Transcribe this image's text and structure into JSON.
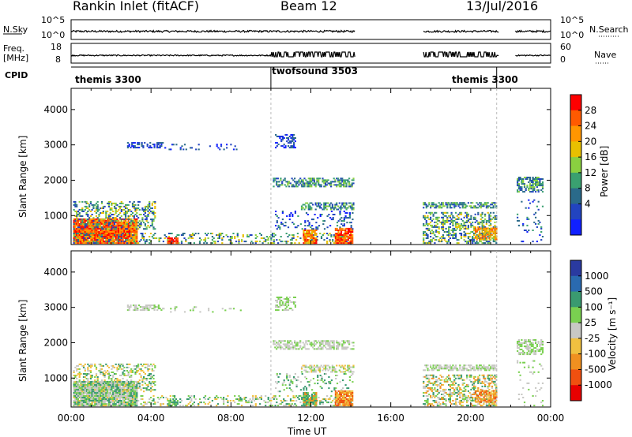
{
  "header": {
    "station": "Rankin Inlet (fitACF)",
    "beam": "Beam 12",
    "date": "13/Jul/2016"
  },
  "side_labels": {
    "nsky": "N.Sky",
    "nsearch": "N.Search",
    "freq_line1": "Freq.",
    "freq_line2": "[MHz]",
    "nave": "Nave",
    "cpid": "CPID"
  },
  "noise_panel": {
    "left_ticks": [
      "10^5",
      "10^0"
    ],
    "right_ticks": [
      "10^5",
      "10^0"
    ]
  },
  "freq_panel": {
    "left_ticks": [
      "18",
      "8"
    ],
    "right_ticks": [
      "60",
      "0"
    ]
  },
  "cpid_blocks": [
    {
      "label": "themis 3300",
      "start_h": 0,
      "end_h": 10
    },
    {
      "label": "twofsound 3503",
      "start_h": 10,
      "end_h": 21.3
    },
    {
      "label": "themis 3300",
      "start_h": 21.3,
      "end_h": 24
    }
  ],
  "data_gaps_h": [
    [
      14.2,
      17.6
    ],
    [
      21.4,
      22.2
    ]
  ],
  "chart_data": [
    {
      "type": "heatmap",
      "quantity": "Power",
      "ylabel": "Slant Range [km]",
      "xlabel": "",
      "ylim": [
        180,
        4600
      ],
      "xlim_h": [
        0,
        24
      ],
      "y_ticks": [
        "1000",
        "2000",
        "3000",
        "4000"
      ],
      "x_ticks": [
        "00:00",
        "04:00",
        "08:00",
        "12:00",
        "16:00",
        "20:00",
        "00:00"
      ],
      "colorbar_label": "Power [dB]",
      "colorbar_ticks": [
        "28",
        "24",
        "20",
        "16",
        "12",
        "8",
        "4"
      ],
      "colorbar_colors": [
        "#ff0000",
        "#ff5a00",
        "#ff9600",
        "#e8c000",
        "#8ad040",
        "#3aa070",
        "#2a6a8a",
        "#2244c0",
        "#1020ff"
      ]
    },
    {
      "type": "heatmap",
      "quantity": "Velocity",
      "ylabel": "Slant Range [km]",
      "xlabel": "Time UT",
      "ylim": [
        180,
        4600
      ],
      "xlim_h": [
        0,
        24
      ],
      "y_ticks": [
        "1000",
        "2000",
        "3000",
        "4000"
      ],
      "x_ticks": [
        "00:00",
        "04:00",
        "08:00",
        "12:00",
        "16:00",
        "20:00",
        "00:00"
      ],
      "colorbar_label": "Velocity [m s⁻¹]",
      "colorbar_ticks": [
        "1000",
        "500",
        "100",
        "25",
        "-25",
        "-100",
        "-500",
        "-1000"
      ],
      "colorbar_colors": [
        "#2a3aa0",
        "#2a6ab0",
        "#3a9a70",
        "#7ad050",
        "#c8c8c4",
        "#f0c040",
        "#f09020",
        "#f05010",
        "#e80000"
      ]
    }
  ]
}
